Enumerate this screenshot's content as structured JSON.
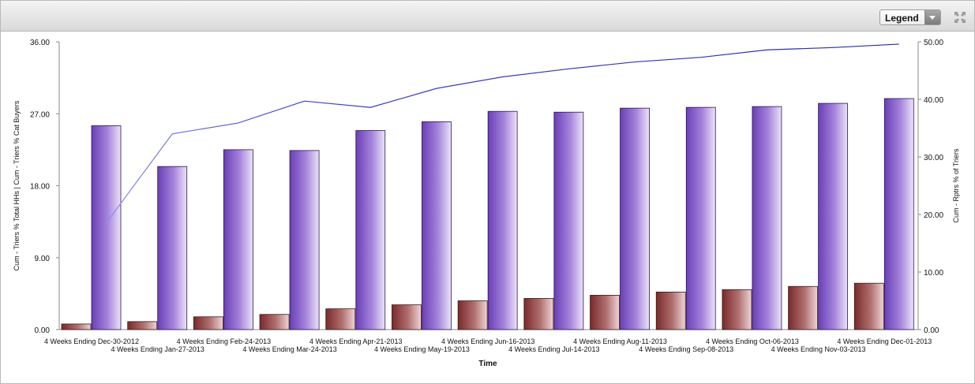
{
  "toolbar": {
    "legend_label": "Legend",
    "expand_icon": "collapse-arrows-icon"
  },
  "chart_data": {
    "type": "bar",
    "xlabel": "Time",
    "ylabel_left": "Cum - Triers % Total HHs | Cum - Triers % Cat Buyers",
    "ylabel_right": "Cum - Rptrs % of Triers",
    "y_left_range": [
      0,
      36
    ],
    "y_left_ticks": [
      "0.00",
      "9.00",
      "18.00",
      "27.00",
      "36.00"
    ],
    "y_right_range": [
      0,
      50
    ],
    "y_right_ticks": [
      "0.00",
      "10.00",
      "20.00",
      "30.00",
      "40.00",
      "50.00"
    ],
    "grid": false,
    "categories": [
      "4 Weeks Ending Dec-30-2012",
      "4 Weeks Ending Jan-27-2013",
      "4 Weeks Ending Feb-24-2013",
      "4 Weeks Ending Mar-24-2013",
      "4 Weeks Ending Apr-21-2013",
      "4 Weeks Ending May-19-2013",
      "4 Weeks Ending Jun-16-2013",
      "4 Weeks Ending Jul-14-2013",
      "4 Weeks Ending Aug-11-2013",
      "4 Weeks Ending Sep-08-2013",
      "4 Weeks Ending Oct-06-2013",
      "4 Weeks Ending Nov-03-2013",
      "4 Weeks Ending Dec-01-2013"
    ],
    "series": [
      {
        "axis": "left",
        "kind": "bar",
        "color": "#8b3a3a",
        "values": [
          0.7,
          1.0,
          1.6,
          1.9,
          2.6,
          3.1,
          3.6,
          3.9,
          4.3,
          4.7,
          5.0,
          5.4,
          5.8
        ]
      },
      {
        "axis": "left",
        "kind": "bar",
        "color": "#7b4fc0",
        "values": [
          25.5,
          20.4,
          22.5,
          22.4,
          24.9,
          26.0,
          27.3,
          27.2,
          27.7,
          27.8,
          27.9,
          28.3,
          28.9
        ]
      },
      {
        "axis": "right",
        "kind": "line",
        "color": "#2d2dbd",
        "values": [
          18.5,
          34.0,
          35.9,
          39.7,
          38.6,
          41.9,
          43.9,
          45.3,
          46.5,
          47.3,
          48.6,
          49.0,
          49.6
        ]
      }
    ]
  }
}
